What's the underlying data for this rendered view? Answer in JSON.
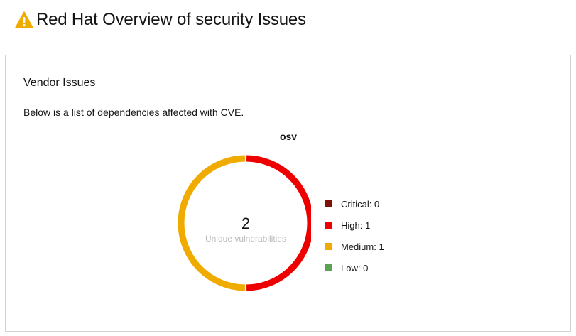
{
  "header": {
    "title": "Red Hat Overview of security Issues",
    "icon": "warning-icon",
    "icon_color": "#f0ab00"
  },
  "card": {
    "title": "Vendor Issues",
    "description": "Below is a list of dependencies affected with CVE."
  },
  "chart_data": {
    "type": "pie",
    "title": "osv",
    "total": "2",
    "total_label": "Unique vulnerabilities",
    "series": [
      {
        "label": "Critical: 0",
        "name": "Critical",
        "value": 0,
        "color": "#7d1007"
      },
      {
        "label": "High: 1",
        "name": "High",
        "value": 1,
        "color": "#ee0000"
      },
      {
        "label": "Medium: 1",
        "name": "Medium",
        "value": 1,
        "color": "#f0ab00"
      },
      {
        "label": "Low: 0",
        "name": "Low",
        "value": 0,
        "color": "#5ba352"
      }
    ],
    "legend_position": "right"
  }
}
